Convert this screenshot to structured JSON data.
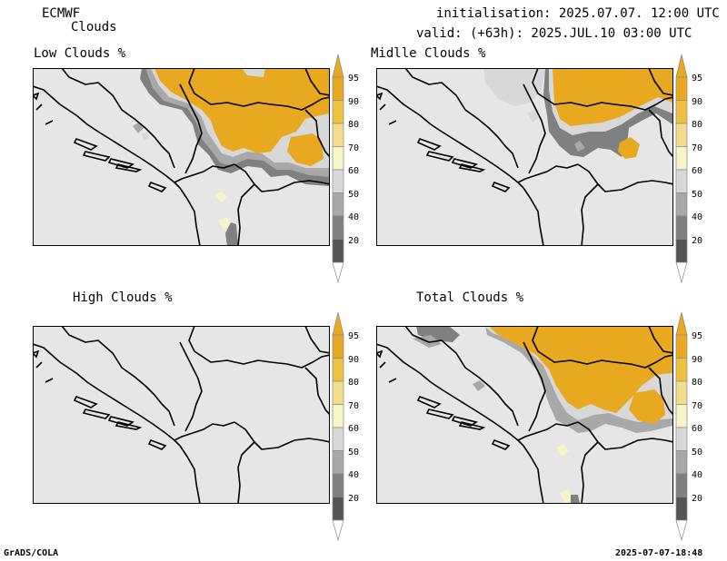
{
  "header": {
    "model": "ECMWF",
    "product": "Clouds",
    "init": "initialisation: 2025.07.07. 12:00 UTC",
    "valid": "valid: (+63h): 2025.JUL.10 03:00 UTC"
  },
  "panels": [
    {
      "title": "Low Clouds %",
      "key": "low"
    },
    {
      "title": "Midlle Clouds %",
      "key": "mid"
    },
    {
      "title": "High Clouds %",
      "key": "high"
    },
    {
      "title": "Total Clouds %",
      "key": "total"
    }
  ],
  "colorbar": {
    "labels": [
      "95",
      "90",
      "80",
      "70",
      "60",
      "50",
      "40",
      "20"
    ],
    "colors": {
      "c95": "#e8a820",
      "c90": "#f0c040",
      "c80": "#f5dc8c",
      "c70": "#f5f5c8",
      "c60": "#d8d8d8",
      "c50": "#a8a8a8",
      "c40": "#808080",
      "c20": "#555555",
      "below": "#ffffff"
    }
  },
  "colors": {
    "background": "#e6e6e6",
    "coast": "#000000"
  },
  "footer": {
    "left": "GrADS/COLA",
    "right": "2025-07-07-18:48"
  }
}
